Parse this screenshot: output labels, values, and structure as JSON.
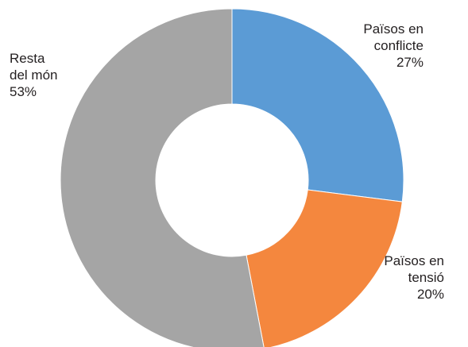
{
  "chart_data": {
    "type": "pie",
    "donut": true,
    "legend": "none",
    "slices": [
      {
        "label_lines": [
          "Països en",
          "conflicte"
        ],
        "value_text": "27%",
        "value": 27,
        "color": "#5b9bd5"
      },
      {
        "label_lines": [
          "Països en",
          "tensió"
        ],
        "value_text": "20%",
        "value": 20,
        "color": "#f4873e"
      },
      {
        "label_lines": [
          "Resta",
          "del món"
        ],
        "value_text": "53%",
        "value": 53,
        "color": "#a5a5a5"
      }
    ]
  }
}
